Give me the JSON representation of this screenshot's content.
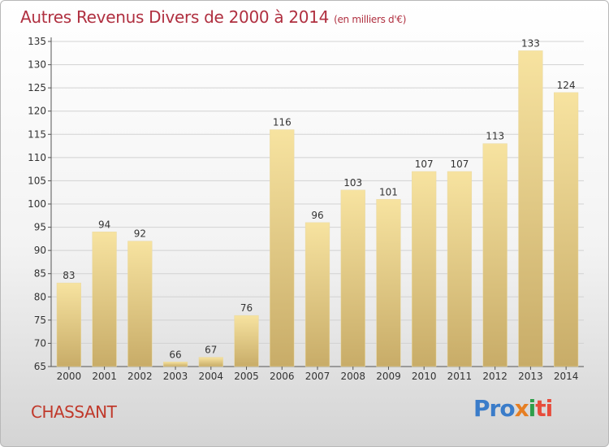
{
  "header": {
    "title": "Autres Revenus Divers de 2000 à 2014",
    "unit": "(en milliers d'€)"
  },
  "footer": {
    "city": "CHASSANT",
    "logo_parts": [
      "Pro",
      "x",
      "i",
      "ti"
    ]
  },
  "colors": {
    "bar_light": "#f7e3a0",
    "bar_dark": "#c8ac68",
    "title": "#b03040",
    "city": "#c0392b",
    "logo_blue": "#3a7cc9",
    "logo_orange": "#e67e22",
    "logo_green": "#2e9e4a",
    "logo_red": "#e74c3c"
  },
  "chart_data": {
    "type": "bar",
    "title": "Autres Revenus Divers de 2000 à 2014",
    "subtitle": "(en milliers d'€)",
    "xlabel": "",
    "ylabel": "",
    "categories": [
      "2000",
      "2001",
      "2002",
      "2003",
      "2004",
      "2005",
      "2006",
      "2007",
      "2008",
      "2009",
      "2010",
      "2011",
      "2012",
      "2013",
      "2014"
    ],
    "values": [
      83,
      94,
      92,
      66,
      67,
      76,
      116,
      96,
      103,
      101,
      107,
      107,
      113,
      133,
      124
    ],
    "ylim": [
      65,
      135
    ],
    "yticks": [
      65,
      70,
      75,
      80,
      85,
      90,
      95,
      100,
      105,
      110,
      115,
      120,
      125,
      130,
      135
    ],
    "grid": true,
    "data_labels": true
  }
}
